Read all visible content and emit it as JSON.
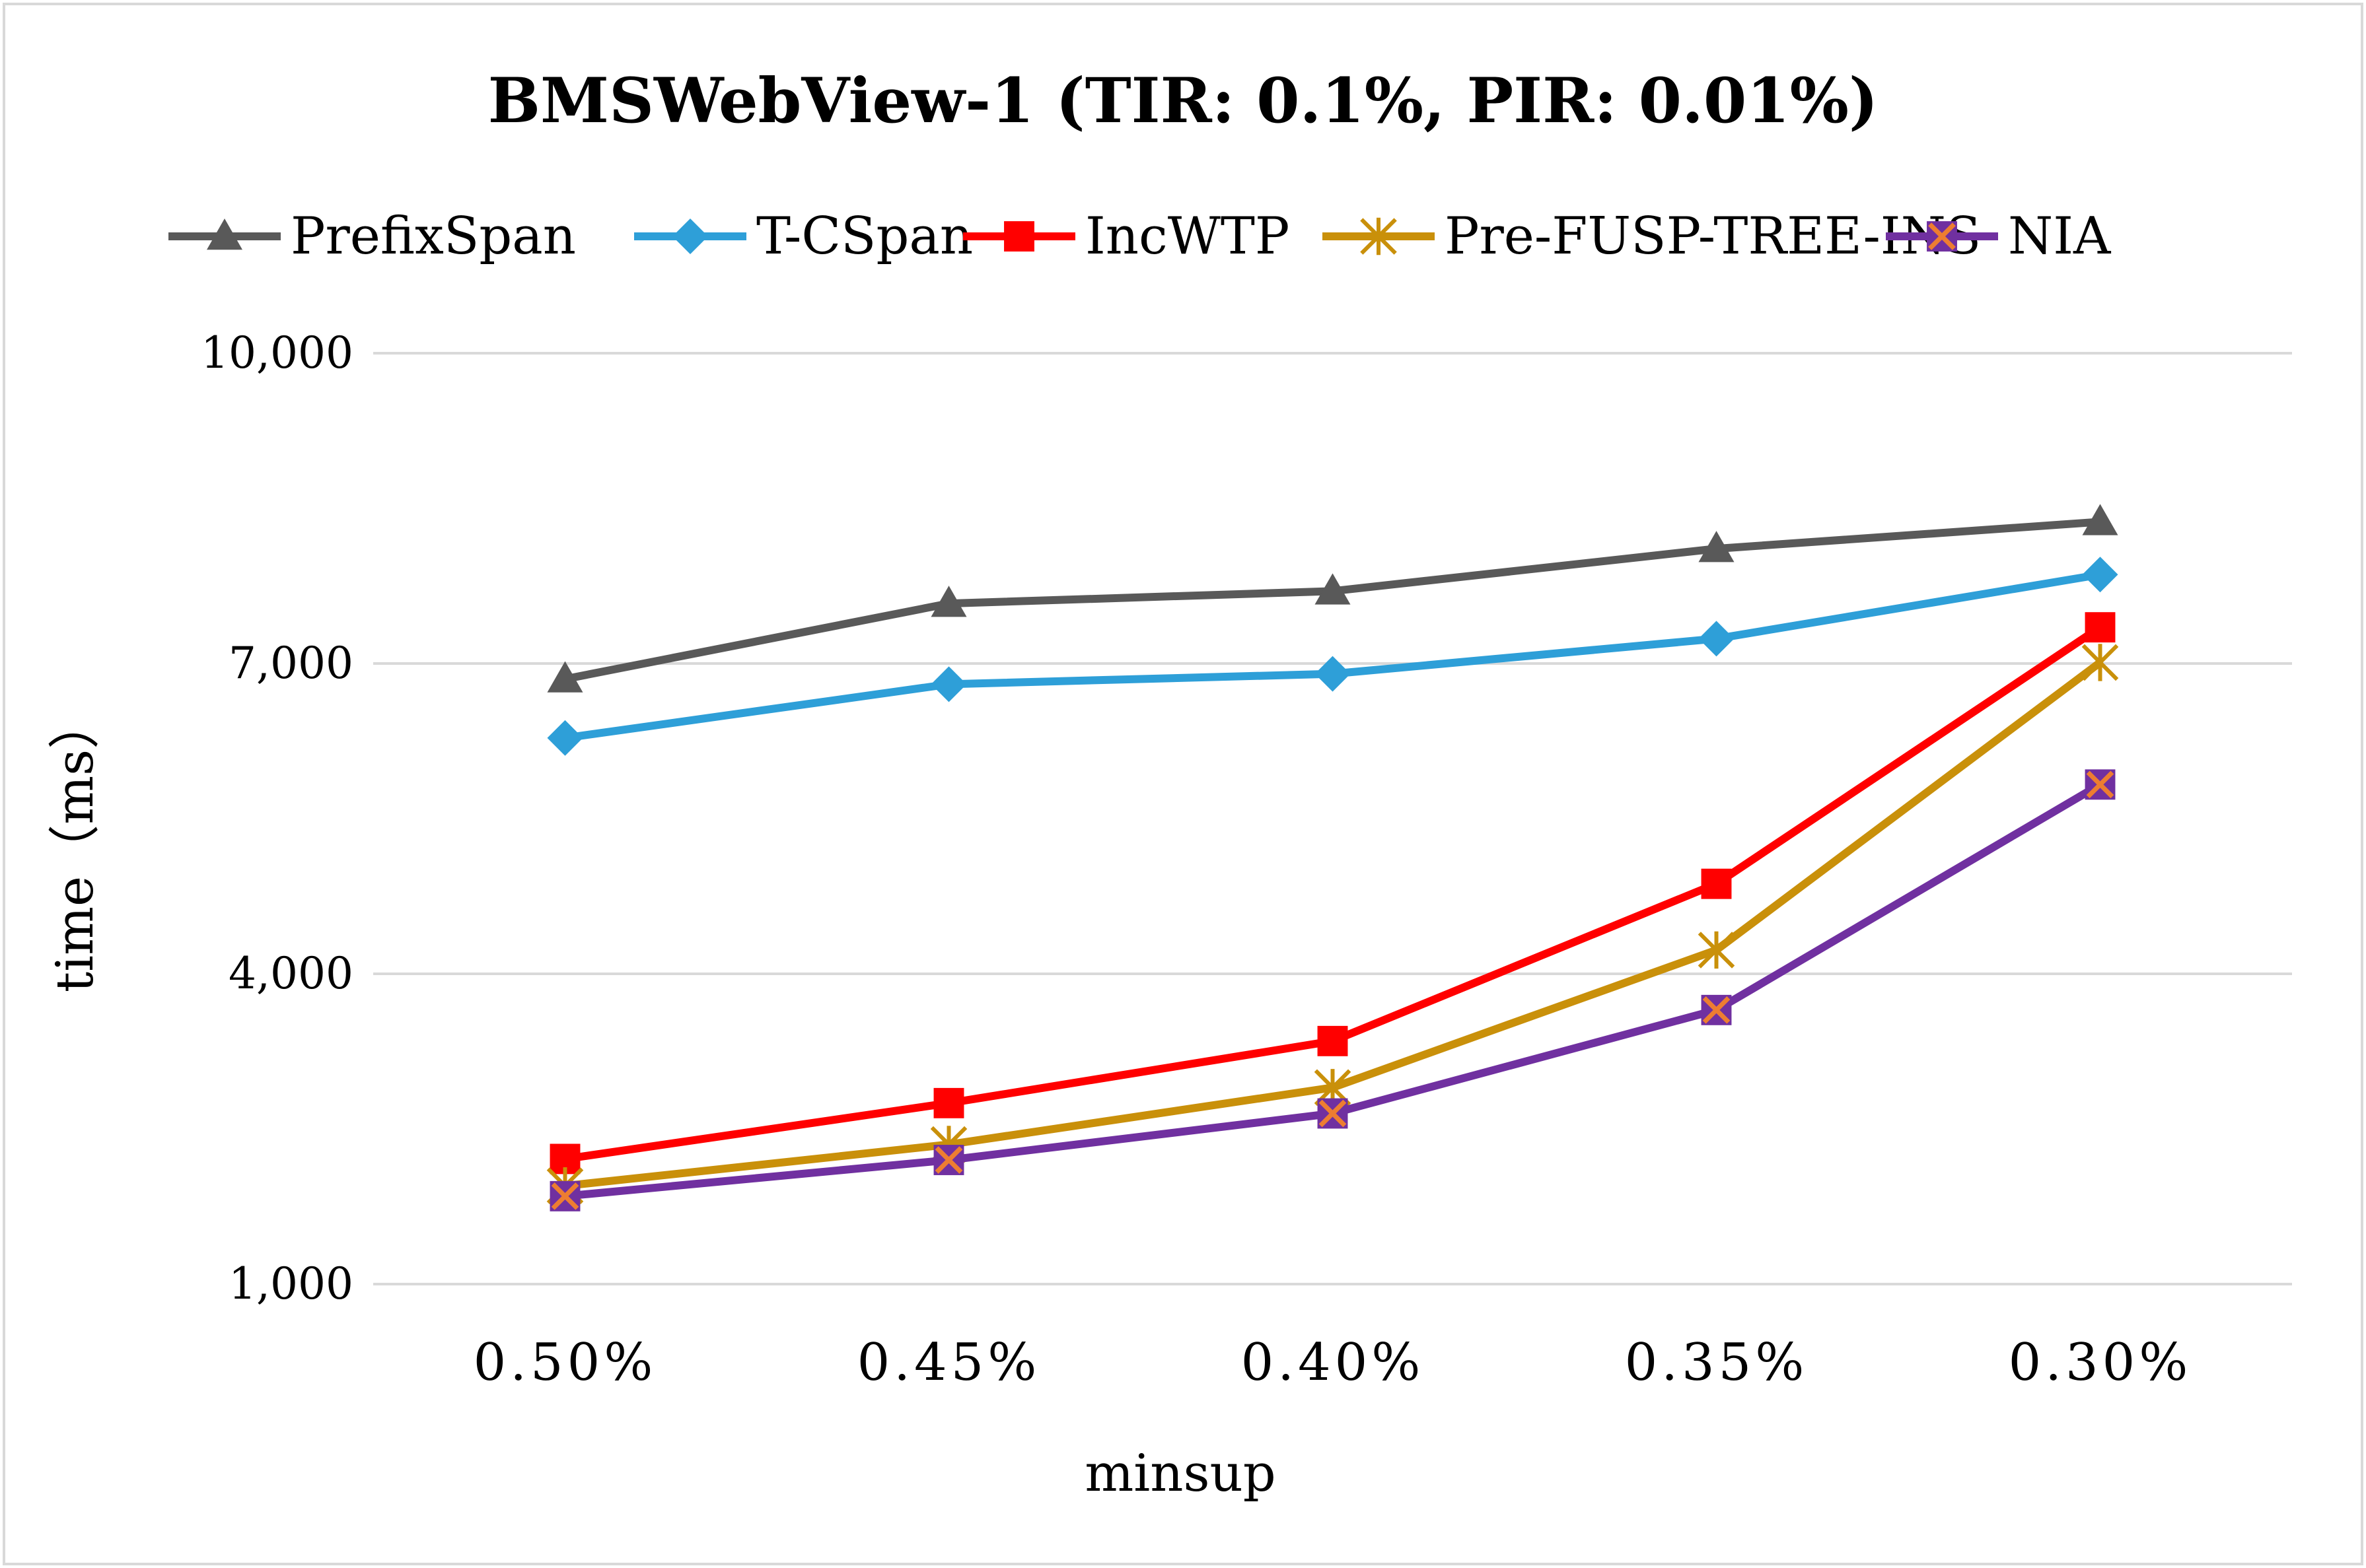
{
  "chart_data": {
    "type": "line",
    "title": "BMSWebView-1 (TIR: 0.1%, PIR: 0.01%)",
    "xlabel": "minsup",
    "ylabel": "time（ms）",
    "categories": [
      "0.50%",
      "0.45%",
      "0.40%",
      "0.35%",
      "0.30%"
    ],
    "ylim": [
      1000,
      10000
    ],
    "yticks": [
      1000,
      4000,
      7000,
      10000
    ],
    "ytick_labels": [
      "1,000",
      "4,000",
      "7,000",
      "10,000"
    ],
    "grid": "horizontal",
    "legend_position": "top",
    "series": [
      {
        "name": "PrefixSpan",
        "color": "#595959",
        "marker": "triangle",
        "values": [
          6850,
          7580,
          7700,
          8110,
          8370
        ]
      },
      {
        "name": "T-CSpan",
        "color": "#2E9FD8",
        "marker": "diamond",
        "values": [
          6280,
          6800,
          6900,
          7240,
          7860
        ]
      },
      {
        "name": "IncWTP",
        "color": "#FF0000",
        "marker": "square",
        "values": [
          2210,
          2750,
          3350,
          4870,
          7350
        ]
      },
      {
        "name": "Pre-FUSP-TREE-INS",
        "color": "#C9900A",
        "marker": "asterisk",
        "values": [
          1950,
          2350,
          2900,
          4230,
          7010
        ]
      },
      {
        "name": "NIA",
        "color": "#7030A0",
        "marker": "x-square",
        "values": [
          1850,
          2200,
          2650,
          3650,
          5830
        ]
      }
    ]
  }
}
